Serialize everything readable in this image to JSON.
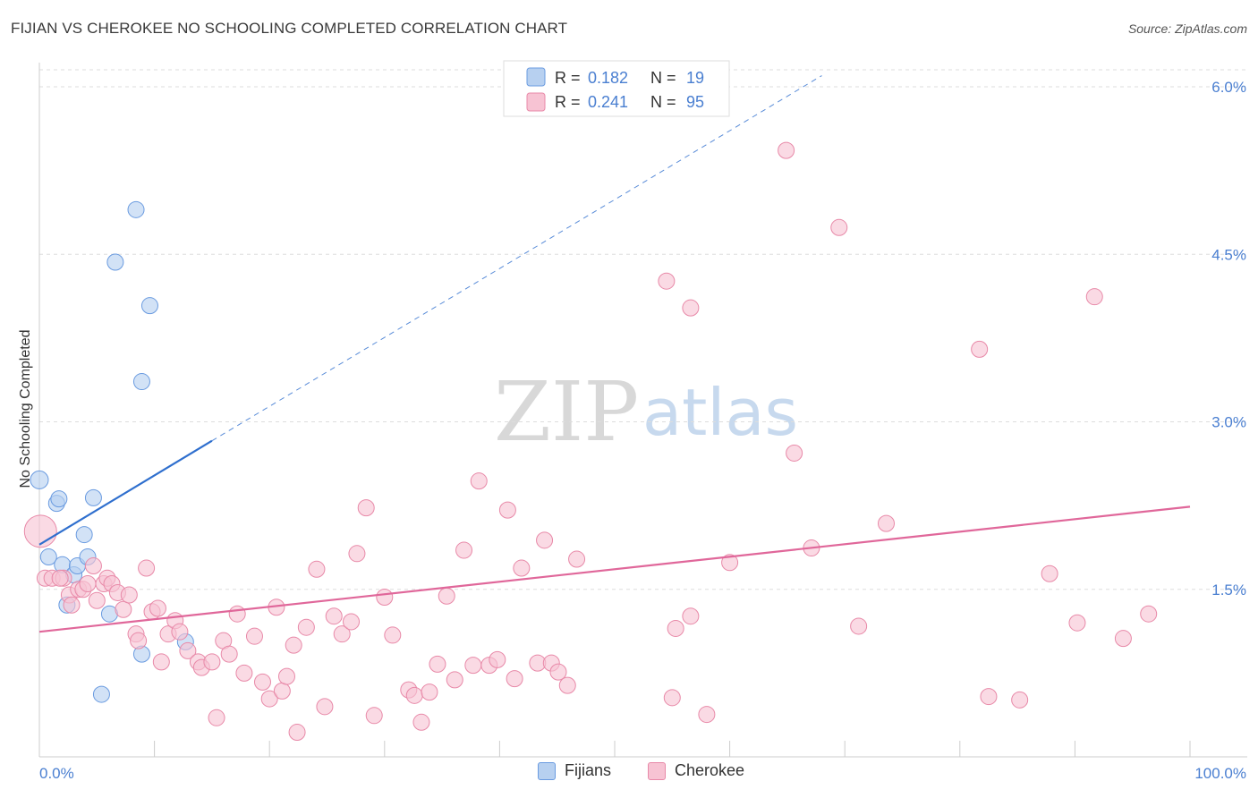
{
  "title": "FIJIAN VS CHEROKEE NO SCHOOLING COMPLETED CORRELATION CHART",
  "source": "Source: ZipAtlas.com",
  "watermark": {
    "zip": "ZIP",
    "atlas": "atlas"
  },
  "legend_top": [
    {
      "r_label": "R = ",
      "r_value": "0.182",
      "n_label": "N = ",
      "n_value": "19"
    },
    {
      "r_label": "R = ",
      "r_value": "0.241",
      "n_label": "N = ",
      "n_value": "95"
    }
  ],
  "legend_bottom": [
    "Fijians",
    "Cherokee"
  ],
  "colors": {
    "fijians_fill": "#b7d0f0",
    "fijians_stroke": "#6a9be0",
    "fijians_line": "#2f6fce",
    "cherokee_fill": "#f7c3d3",
    "cherokee_stroke": "#e889a8",
    "cherokee_line": "#e0679a",
    "tick_text": "#4a7fd1",
    "grid": "#dddddd"
  },
  "chart_data": {
    "type": "scatter",
    "title": "FIJIAN VS CHEROKEE NO SCHOOLING COMPLETED CORRELATION CHART",
    "xlabel": "",
    "ylabel": "No Schooling Completed",
    "xlim": [
      0,
      100
    ],
    "ylim": [
      0,
      6.2
    ],
    "x_tick_labels": [
      "0.0%",
      "100.0%"
    ],
    "y_ticks": [
      1.5,
      3.0,
      4.5,
      6.0
    ],
    "y_tick_labels": [
      "1.5%",
      "3.0%",
      "4.5%",
      "6.0%"
    ],
    "grid": true,
    "legend_position": "top-center",
    "series": [
      {
        "name": "Fijians",
        "r": 0.182,
        "n": 19,
        "trend": {
          "x0": 0,
          "y0": 1.9,
          "x1": 15,
          "y1": 2.83,
          "dashed_to_x": 68,
          "dashed_to_y": 6.1
        },
        "points": [
          [
            0,
            2.48
          ],
          [
            1.5,
            2.27
          ],
          [
            1.7,
            2.31
          ],
          [
            4.7,
            2.32
          ],
          [
            0.8,
            1.79
          ],
          [
            2.0,
            1.72
          ],
          [
            2.4,
            1.36
          ],
          [
            3.0,
            1.63
          ],
          [
            3.3,
            1.71
          ],
          [
            3.9,
            1.99
          ],
          [
            4.2,
            1.79
          ],
          [
            6.1,
            1.28
          ],
          [
            8.9,
            0.92
          ],
          [
            12.7,
            1.03
          ],
          [
            5.4,
            0.56
          ],
          [
            8.4,
            4.9
          ],
          [
            6.6,
            4.43
          ],
          [
            9.6,
            4.04
          ],
          [
            8.9,
            3.36
          ]
        ]
      },
      {
        "name": "Cherokee",
        "r": 0.241,
        "n": 95,
        "trend": {
          "x0": 0,
          "y0": 1.12,
          "x1": 100,
          "y1": 2.24
        },
        "points": [
          [
            0.1,
            2.02
          ],
          [
            0.5,
            1.6
          ],
          [
            1.1,
            1.6
          ],
          [
            2.1,
            1.6
          ],
          [
            1.8,
            1.6
          ],
          [
            2.6,
            1.45
          ],
          [
            2.8,
            1.36
          ],
          [
            3.4,
            1.5
          ],
          [
            3.8,
            1.5
          ],
          [
            4.2,
            1.55
          ],
          [
            4.7,
            1.71
          ],
          [
            5.0,
            1.4
          ],
          [
            5.6,
            1.55
          ],
          [
            5.9,
            1.6
          ],
          [
            6.3,
            1.55
          ],
          [
            6.8,
            1.47
          ],
          [
            7.3,
            1.32
          ],
          [
            7.8,
            1.45
          ],
          [
            8.4,
            1.1
          ],
          [
            8.6,
            1.04
          ],
          [
            9.3,
            1.69
          ],
          [
            9.8,
            1.3
          ],
          [
            10.3,
            1.33
          ],
          [
            10.6,
            0.85
          ],
          [
            11.2,
            1.1
          ],
          [
            11.8,
            1.22
          ],
          [
            12.2,
            1.12
          ],
          [
            12.9,
            0.95
          ],
          [
            13.8,
            0.85
          ],
          [
            14.1,
            0.8
          ],
          [
            15.0,
            0.85
          ],
          [
            15.4,
            0.35
          ],
          [
            16.0,
            1.04
          ],
          [
            16.5,
            0.92
          ],
          [
            17.2,
            1.28
          ],
          [
            17.8,
            0.75
          ],
          [
            18.7,
            1.08
          ],
          [
            19.4,
            0.67
          ],
          [
            20.0,
            0.52
          ],
          [
            20.6,
            1.34
          ],
          [
            21.1,
            0.59
          ],
          [
            21.5,
            0.72
          ],
          [
            22.1,
            1.0
          ],
          [
            22.4,
            0.22
          ],
          [
            23.2,
            1.16
          ],
          [
            24.1,
            1.68
          ],
          [
            24.8,
            0.45
          ],
          [
            25.6,
            1.26
          ],
          [
            26.3,
            1.1
          ],
          [
            27.1,
            1.21
          ],
          [
            27.6,
            1.82
          ],
          [
            28.4,
            2.23
          ],
          [
            29.1,
            0.37
          ],
          [
            30.0,
            1.43
          ],
          [
            30.7,
            1.09
          ],
          [
            32.1,
            0.6
          ],
          [
            32.6,
            0.55
          ],
          [
            33.2,
            0.31
          ],
          [
            33.9,
            0.58
          ],
          [
            34.6,
            0.83
          ],
          [
            35.4,
            1.44
          ],
          [
            36.1,
            0.69
          ],
          [
            36.9,
            1.85
          ],
          [
            37.7,
            0.82
          ],
          [
            38.2,
            2.47
          ],
          [
            39.1,
            0.82
          ],
          [
            39.8,
            0.87
          ],
          [
            40.7,
            2.21
          ],
          [
            41.3,
            0.7
          ],
          [
            41.9,
            1.69
          ],
          [
            43.3,
            0.84
          ],
          [
            43.9,
            1.94
          ],
          [
            44.5,
            0.84
          ],
          [
            45.1,
            0.76
          ],
          [
            45.9,
            0.64
          ],
          [
            46.7,
            1.77
          ],
          [
            54.5,
            4.26
          ],
          [
            55.0,
            0.53
          ],
          [
            55.3,
            1.15
          ],
          [
            56.6,
            4.02
          ],
          [
            56.6,
            1.26
          ],
          [
            58.0,
            0.38
          ],
          [
            60.0,
            1.74
          ],
          [
            64.9,
            5.43
          ],
          [
            65.6,
            2.72
          ],
          [
            67.1,
            1.87
          ],
          [
            69.5,
            4.74
          ],
          [
            71.2,
            1.17
          ],
          [
            73.6,
            2.09
          ],
          [
            81.7,
            3.65
          ],
          [
            82.5,
            0.54
          ],
          [
            85.2,
            0.51
          ],
          [
            87.8,
            1.64
          ],
          [
            90.2,
            1.2
          ],
          [
            91.7,
            4.12
          ],
          [
            94.2,
            1.06
          ],
          [
            96.4,
            1.28
          ]
        ]
      }
    ]
  }
}
